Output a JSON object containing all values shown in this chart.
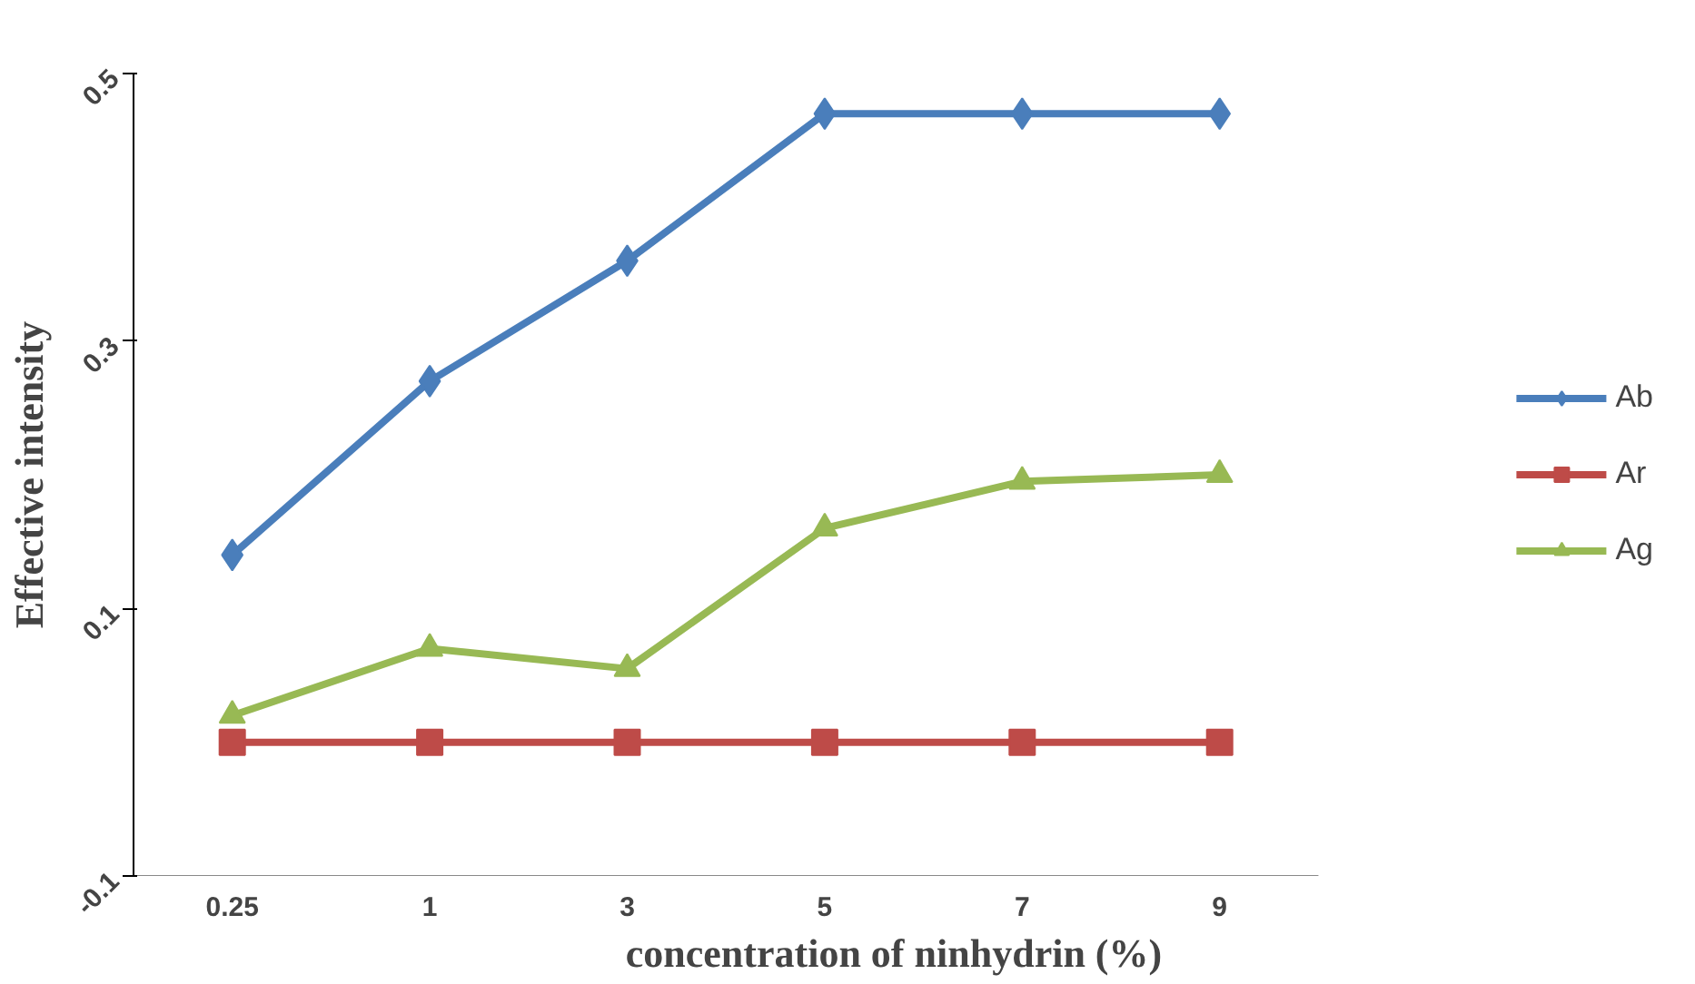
{
  "chart_data": {
    "type": "line",
    "xlabel": "concentration of ninhydrin (%)",
    "ylabel": "Effective intensity",
    "categories": [
      "0.25",
      "1",
      "3",
      "5",
      "7",
      "9"
    ],
    "ylim": [
      -0.1,
      0.5
    ],
    "yticks": [
      -0.1,
      0.1,
      0.3,
      0.5
    ],
    "grid": false,
    "legend": "right",
    "line_style": "solid",
    "series": [
      {
        "name": "Ab",
        "color": "#4a7ebb",
        "marker": "diamond",
        "values": [
          0.14,
          0.27,
          0.36,
          0.47,
          0.47,
          0.47
        ]
      },
      {
        "name": "Ar",
        "color": "#be4b48",
        "marker": "square",
        "values": [
          0,
          0,
          0,
          0,
          0,
          0
        ]
      },
      {
        "name": "Ag",
        "color": "#98b954",
        "marker": "triangle",
        "values": [
          0.02,
          0.07,
          0.055,
          0.16,
          0.195,
          0.2
        ]
      }
    ]
  }
}
